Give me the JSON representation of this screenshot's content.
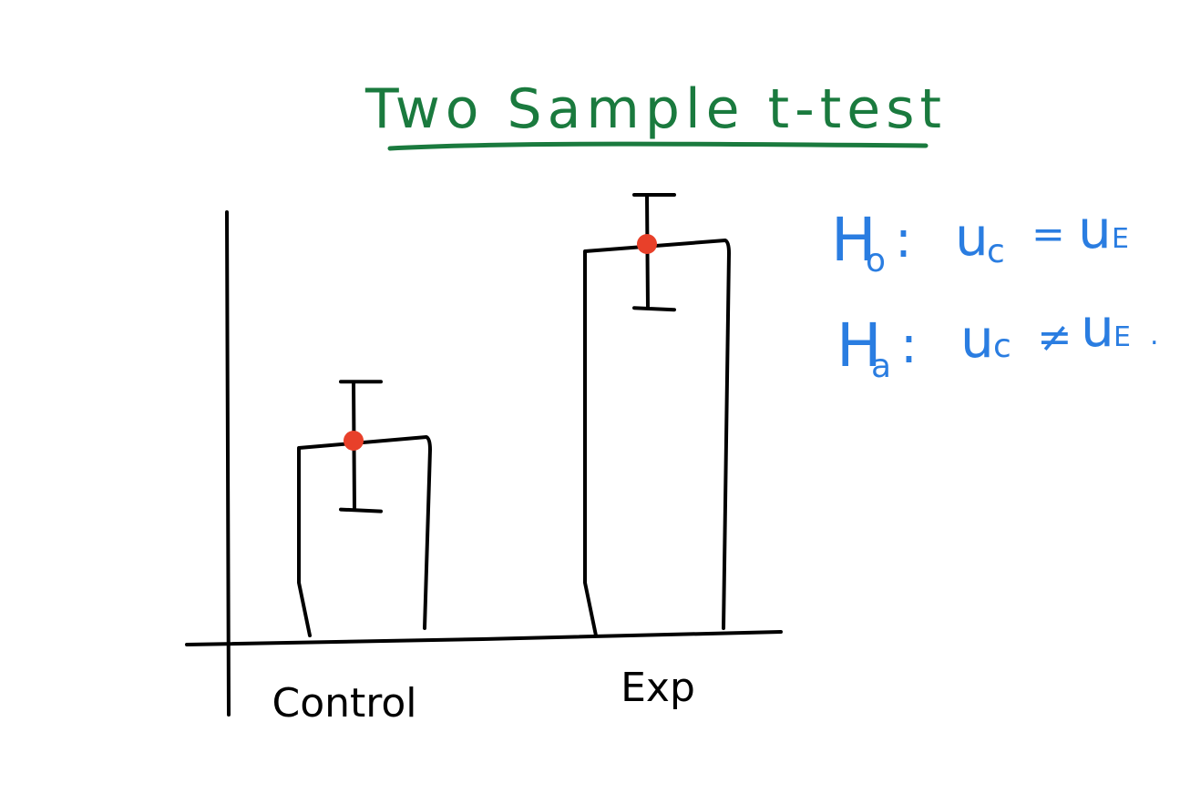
{
  "title": "Two Sample t-test",
  "hypotheses": {
    "null": {
      "H": "H",
      "sub": "o",
      "colon": ":",
      "lhs": "u",
      "lhs_sub": "c",
      "relation": "=",
      "rhs": "u",
      "rhs_sub": "E",
      "end": ""
    },
    "alternative": {
      "H": "H",
      "sub": "a",
      "colon": ":",
      "lhs": "u",
      "lhs_sub": "c",
      "relation": "≠",
      "rhs": "u",
      "rhs_sub": "E",
      "end": "."
    }
  },
  "chart_data": {
    "type": "bar",
    "categories": [
      "Control",
      "Exp"
    ],
    "values": [
      4,
      8
    ],
    "error_low": [
      2.6,
      6.7
    ],
    "error_high": [
      5.2,
      9.0
    ],
    "ylim": [
      0,
      10
    ],
    "xlabel": "",
    "ylabel": "",
    "grid": false,
    "legend": "none",
    "mean_marker_color": "#e8402a",
    "title_color": "#1a7a3e",
    "hypothesis_color": "#2a7de1"
  }
}
